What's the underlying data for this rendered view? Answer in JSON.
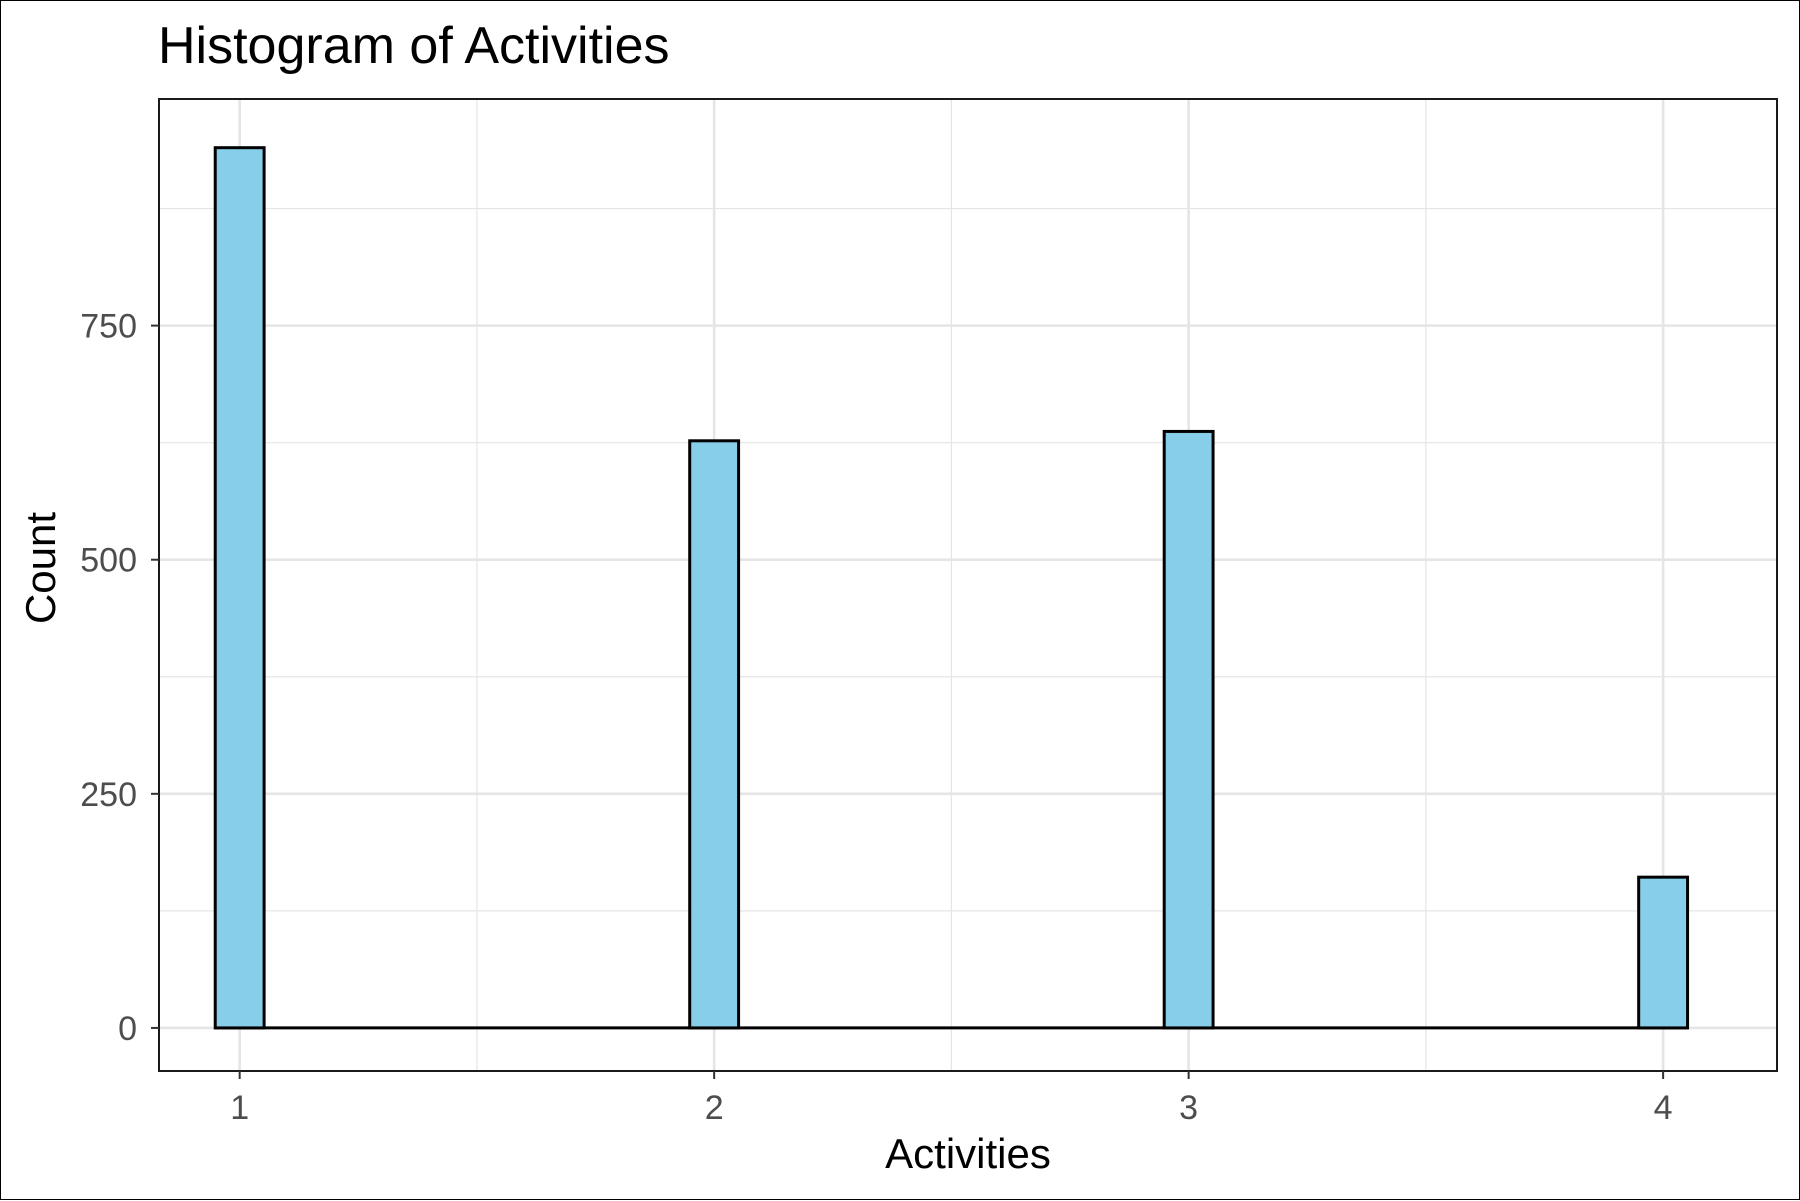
{
  "chart_data": {
    "type": "bar",
    "title": "Histogram of Activities",
    "xlabel": "Activities",
    "ylabel": "Count",
    "x": [
      1,
      2,
      3,
      4
    ],
    "values": [
      940,
      627,
      637,
      161
    ],
    "bin_width": 0.103,
    "xlim": [
      0.83,
      4.24
    ],
    "ylim": [
      -46,
      992
    ],
    "xticks": [
      1,
      2,
      3,
      4
    ],
    "yticks": [
      0,
      250,
      500,
      750
    ],
    "grid": true,
    "bar_fill": "#87CEEB",
    "bar_stroke": "#000000",
    "grid_color": "#e5e5e5"
  }
}
